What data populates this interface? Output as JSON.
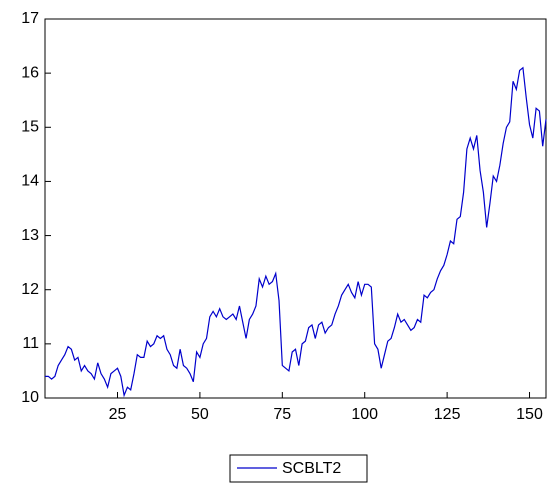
{
  "chart_data": {
    "type": "line",
    "x": [
      3,
      4,
      5,
      6,
      7,
      8,
      9,
      10,
      11,
      12,
      13,
      14,
      15,
      16,
      17,
      18,
      19,
      20,
      21,
      22,
      23,
      24,
      25,
      26,
      27,
      28,
      29,
      30,
      31,
      32,
      33,
      34,
      35,
      36,
      37,
      38,
      39,
      40,
      41,
      42,
      43,
      44,
      45,
      46,
      47,
      48,
      49,
      50,
      51,
      52,
      53,
      54,
      55,
      56,
      57,
      58,
      59,
      60,
      61,
      62,
      63,
      64,
      65,
      66,
      67,
      68,
      69,
      70,
      71,
      72,
      73,
      74,
      75,
      76,
      77,
      78,
      79,
      80,
      81,
      82,
      83,
      84,
      85,
      86,
      87,
      88,
      89,
      90,
      91,
      92,
      93,
      94,
      95,
      96,
      97,
      98,
      99,
      100,
      101,
      102,
      103,
      104,
      105,
      106,
      107,
      108,
      109,
      110,
      111,
      112,
      113,
      114,
      115,
      116,
      117,
      118,
      119,
      120,
      121,
      122,
      123,
      124,
      125,
      126,
      127,
      128,
      129,
      130,
      131,
      132,
      133,
      134,
      135,
      136,
      137,
      138,
      139,
      140,
      141,
      142,
      143,
      144,
      145,
      146,
      147,
      148,
      149,
      150,
      151,
      152,
      153,
      154,
      155
    ],
    "series": [
      {
        "name": "SCBLT2",
        "color": "#0000cc",
        "values": [
          10.4,
          10.4,
          10.35,
          10.4,
          10.6,
          10.7,
          10.8,
          10.95,
          10.9,
          10.7,
          10.75,
          10.5,
          10.6,
          10.5,
          10.45,
          10.35,
          10.65,
          10.45,
          10.35,
          10.2,
          10.45,
          10.5,
          10.55,
          10.4,
          10.05,
          10.2,
          10.15,
          10.45,
          10.8,
          10.75,
          10.75,
          11.05,
          10.95,
          11.0,
          11.15,
          11.1,
          11.15,
          10.9,
          10.8,
          10.6,
          10.55,
          10.9,
          10.6,
          10.55,
          10.45,
          10.3,
          10.85,
          10.75,
          11.0,
          11.1,
          11.5,
          11.6,
          11.5,
          11.65,
          11.5,
          11.45,
          11.5,
          11.55,
          11.45,
          11.7,
          11.4,
          11.1,
          11.45,
          11.55,
          11.7,
          12.2,
          12.05,
          12.25,
          12.1,
          12.15,
          12.3,
          11.8,
          10.6,
          10.55,
          10.5,
          10.85,
          10.9,
          10.6,
          11.0,
          11.05,
          11.3,
          11.35,
          11.1,
          11.35,
          11.4,
          11.2,
          11.3,
          11.35,
          11.55,
          11.7,
          11.9,
          12.0,
          12.1,
          11.95,
          11.85,
          12.15,
          11.9,
          12.1,
          12.1,
          12.05,
          11.0,
          10.9,
          10.55,
          10.8,
          11.05,
          11.1,
          11.3,
          11.55,
          11.4,
          11.45,
          11.35,
          11.25,
          11.3,
          11.45,
          11.4,
          11.9,
          11.85,
          11.95,
          12.0,
          12.2,
          12.35,
          12.45,
          12.65,
          12.9,
          12.85,
          13.3,
          13.35,
          13.8,
          14.6,
          14.8,
          14.6,
          14.85,
          14.2,
          13.8,
          13.15,
          13.6,
          14.1,
          14.0,
          14.3,
          14.7,
          15.0,
          15.1,
          15.85,
          15.7,
          16.05,
          16.1,
          15.55,
          15.05,
          14.8,
          15.35,
          15.3,
          14.65,
          15.15
        ]
      }
    ],
    "xlim": [
      3,
      155
    ],
    "xticks": [
      25,
      50,
      75,
      100,
      125,
      150
    ],
    "ylim": [
      10,
      17
    ],
    "yticks": [
      10,
      11,
      12,
      13,
      14,
      15,
      16,
      17
    ]
  }
}
